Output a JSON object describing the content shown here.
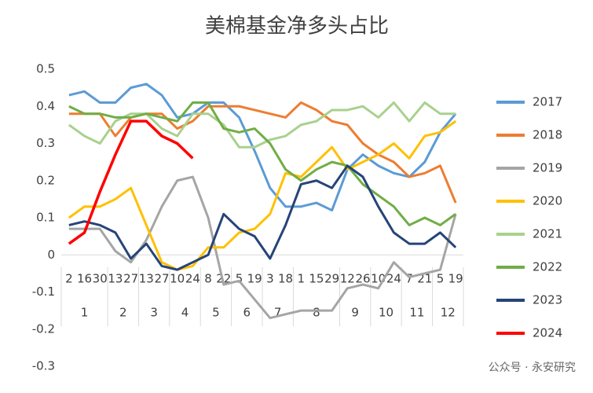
{
  "chart_data": {
    "type": "line",
    "title": "美棉基金净多头占比",
    "categories": [
      "2",
      "16",
      "30",
      "13",
      "27",
      "13",
      "27",
      "10",
      "24",
      "8",
      "22",
      "5",
      "19",
      "3",
      "18",
      "1",
      "15",
      "29",
      "12",
      "26",
      "10",
      "24",
      "7",
      "21",
      "5",
      "19"
    ],
    "groups": [
      {
        "name": "1",
        "span": 3
      },
      {
        "name": "2",
        "span": 2
      },
      {
        "name": "3",
        "span": 2
      },
      {
        "name": "4",
        "span": 2
      },
      {
        "name": "5",
        "span": 2
      },
      {
        "name": "6",
        "span": 2
      },
      {
        "name": "7",
        "span": 2
      },
      {
        "name": "8",
        "span": 3
      },
      {
        "name": "9",
        "span": 2
      },
      {
        "name": "10",
        "span": 2
      },
      {
        "name": "11",
        "span": 2
      },
      {
        "name": "12",
        "span": 2
      }
    ],
    "ylim": [
      -0.3,
      0.5
    ],
    "yticks": [
      -0.3,
      -0.2,
      -0.1,
      0,
      0.1,
      0.2,
      0.3,
      0.4,
      0.5
    ],
    "legend": "right",
    "series": [
      {
        "name": "2017",
        "color": "#5b9bd5",
        "values": [
          0.43,
          0.44,
          0.41,
          0.41,
          0.45,
          0.46,
          0.43,
          0.37,
          0.38,
          0.41,
          0.41,
          0.37,
          0.28,
          0.18,
          0.13,
          0.13,
          0.14,
          0.12,
          0.23,
          0.27,
          0.24,
          0.22,
          0.21,
          0.25,
          0.33,
          0.38
        ]
      },
      {
        "name": "2018",
        "color": "#ed7d31",
        "values": [
          0.38,
          0.38,
          0.38,
          0.32,
          0.37,
          0.38,
          0.38,
          0.34,
          0.36,
          0.4,
          0.4,
          0.4,
          0.39,
          0.38,
          0.37,
          0.41,
          0.39,
          0.36,
          0.35,
          0.3,
          0.27,
          0.25,
          0.21,
          0.22,
          0.24,
          0.14
        ]
      },
      {
        "name": "2019",
        "color": "#a5a5a5",
        "values": [
          0.07,
          0.07,
          0.07,
          0.01,
          -0.02,
          0.04,
          0.13,
          0.2,
          0.21,
          0.1,
          -0.08,
          -0.07,
          -0.12,
          -0.17,
          -0.16,
          -0.15,
          -0.15,
          -0.15,
          -0.09,
          -0.08,
          -0.09,
          -0.02,
          -0.06,
          -0.05,
          -0.04,
          0.11
        ]
      },
      {
        "name": "2020",
        "color": "#ffc000",
        "values": [
          0.1,
          0.13,
          0.13,
          0.15,
          0.18,
          0.08,
          -0.02,
          -0.04,
          -0.03,
          0.02,
          0.02,
          0.06,
          0.07,
          0.11,
          0.22,
          0.21,
          0.25,
          0.29,
          0.23,
          0.25,
          0.27,
          0.3,
          0.26,
          0.32,
          0.33,
          0.36
        ]
      },
      {
        "name": "2021",
        "color": "#a9d18e",
        "values": [
          0.35,
          0.32,
          0.3,
          0.36,
          0.38,
          0.38,
          0.34,
          0.32,
          0.38,
          0.38,
          0.35,
          0.29,
          0.29,
          0.31,
          0.32,
          0.35,
          0.36,
          0.39,
          0.39,
          0.4,
          0.37,
          0.41,
          0.36,
          0.41,
          0.38,
          0.38
        ]
      },
      {
        "name": "2022",
        "color": "#70ad47",
        "values": [
          0.4,
          0.38,
          0.38,
          0.37,
          0.37,
          0.38,
          0.37,
          0.36,
          0.41,
          0.41,
          0.34,
          0.33,
          0.34,
          0.3,
          0.23,
          0.2,
          0.23,
          0.25,
          0.24,
          0.19,
          0.16,
          0.13,
          0.08,
          0.1,
          0.08,
          0.11
        ]
      },
      {
        "name": "2023",
        "color": "#264478",
        "values": [
          0.08,
          0.09,
          0.08,
          0.06,
          -0.01,
          0.03,
          -0.03,
          -0.04,
          -0.02,
          0.0,
          0.11,
          0.07,
          0.05,
          -0.01,
          0.08,
          0.19,
          0.2,
          0.18,
          0.24,
          0.21,
          0.13,
          0.06,
          0.03,
          0.03,
          0.06,
          0.02
        ]
      },
      {
        "name": "2024",
        "color": "#ff0000",
        "values": [
          0.03,
          0.06,
          0.17,
          0.27,
          0.36,
          0.36,
          0.32,
          0.3,
          0.26,
          null,
          null,
          null,
          null,
          null,
          null,
          null,
          null,
          null,
          null,
          null,
          null,
          null,
          null,
          null,
          null,
          null
        ]
      }
    ]
  },
  "watermark": "公众号 · 永安研究"
}
